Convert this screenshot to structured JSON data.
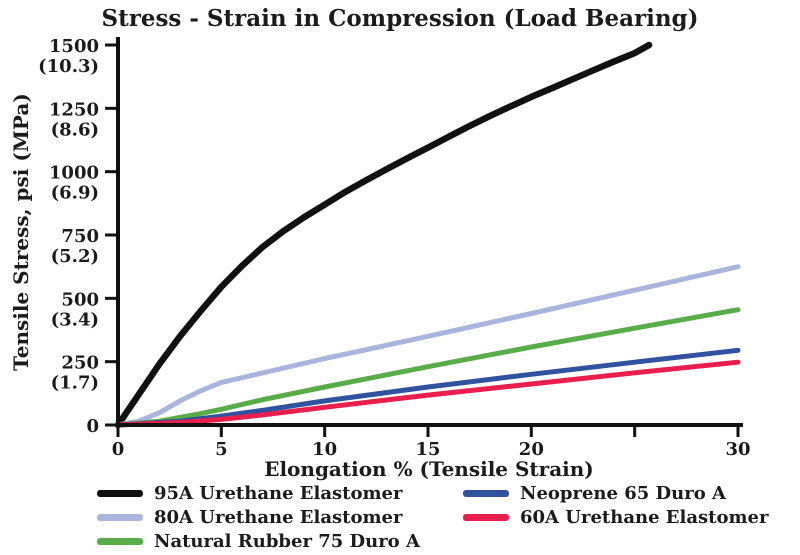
{
  "chart_data": {
    "type": "line",
    "title": "Stress - Strain in Compression (Load Bearing)",
    "xlabel": "Elongation % (Tensile Strain)",
    "ylabel": "Tensile Stress, psi (MPa)",
    "xlim": [
      0,
      30
    ],
    "ylim": [
      0,
      1500
    ],
    "grid": false,
    "legend_position": "bottom",
    "x_ticks": [
      {
        "value": 0,
        "label": "0"
      },
      {
        "value": 5,
        "label": "5"
      },
      {
        "value": 10,
        "label": "10"
      },
      {
        "value": 15,
        "label": "15"
      },
      {
        "value": 20,
        "label": "20"
      },
      {
        "value": 25,
        "label": ""
      },
      {
        "value": 30,
        "label": "30"
      }
    ],
    "y_ticks": [
      {
        "value": 0,
        "psi": "0",
        "mpa": ""
      },
      {
        "value": 250,
        "psi": "250",
        "mpa": "(1.7)"
      },
      {
        "value": 500,
        "psi": "500",
        "mpa": "(3.4)"
      },
      {
        "value": 750,
        "psi": "750",
        "mpa": "(5.2)"
      },
      {
        "value": 1000,
        "psi": "1000",
        "mpa": "(6.9)"
      },
      {
        "value": 1250,
        "psi": "1250",
        "mpa": "(8.6)"
      },
      {
        "value": 1500,
        "psi": "1500",
        "mpa": "(10.3)"
      }
    ],
    "series": [
      {
        "name": "95A Urethane Elastomer",
        "color": "#111111",
        "width": 6.5,
        "points": [
          [
            0,
            0
          ],
          [
            1,
            120
          ],
          [
            2,
            240
          ],
          [
            3,
            350
          ],
          [
            4,
            450
          ],
          [
            5,
            545
          ],
          [
            6,
            628
          ],
          [
            7,
            703
          ],
          [
            8,
            765
          ],
          [
            9,
            820
          ],
          [
            10,
            870
          ],
          [
            11,
            920
          ],
          [
            12,
            966
          ],
          [
            13,
            1010
          ],
          [
            14,
            1053
          ],
          [
            15,
            1095
          ],
          [
            16,
            1138
          ],
          [
            17,
            1180
          ],
          [
            18,
            1220
          ],
          [
            19,
            1258
          ],
          [
            20,
            1295
          ],
          [
            21,
            1330
          ],
          [
            22,
            1365
          ],
          [
            23,
            1400
          ],
          [
            24,
            1435
          ],
          [
            25,
            1468
          ],
          [
            25.7,
            1500
          ]
        ]
      },
      {
        "name": "80A Urethane Elastomer",
        "color": "#a9b5dc",
        "width": 5,
        "points": [
          [
            0,
            0
          ],
          [
            1,
            15
          ],
          [
            2,
            48
          ],
          [
            3,
            95
          ],
          [
            4,
            135
          ],
          [
            5,
            168
          ],
          [
            7.5,
            215
          ],
          [
            10,
            262
          ],
          [
            12.5,
            306
          ],
          [
            15,
            350
          ],
          [
            20,
            440
          ],
          [
            25,
            532
          ],
          [
            30,
            625
          ]
        ]
      },
      {
        "name": "Natural Rubber 75 Duro A",
        "color": "#58ad49",
        "width": 5,
        "points": [
          [
            0,
            0
          ],
          [
            2,
            15
          ],
          [
            4,
            45
          ],
          [
            5,
            62
          ],
          [
            7,
            100
          ],
          [
            10,
            150
          ],
          [
            15,
            230
          ],
          [
            20,
            308
          ],
          [
            25,
            382
          ],
          [
            30,
            455
          ]
        ]
      },
      {
        "name": "Neoprene 65 Duro A",
        "color": "#31529f",
        "width": 5,
        "points": [
          [
            0,
            0
          ],
          [
            3,
            15
          ],
          [
            5,
            35
          ],
          [
            7,
            58
          ],
          [
            10,
            95
          ],
          [
            15,
            150
          ],
          [
            20,
            200
          ],
          [
            25,
            248
          ],
          [
            30,
            295
          ]
        ]
      },
      {
        "name": "60A Urethane Elastomer",
        "color": "#e81e4c",
        "width": 5,
        "points": [
          [
            0,
            0
          ],
          [
            3,
            10
          ],
          [
            5,
            22
          ],
          [
            7,
            40
          ],
          [
            10,
            70
          ],
          [
            15,
            118
          ],
          [
            20,
            162
          ],
          [
            25,
            206
          ],
          [
            30,
            248
          ]
        ]
      }
    ]
  },
  "legend": {
    "columns": [
      [
        {
          "label": "95A Urethane Elastomer",
          "series_index": 0
        },
        {
          "label": "80A Urethane Elastomer",
          "series_index": 1
        },
        {
          "label": "Natural Rubber 75 Duro A",
          "series_index": 2
        }
      ],
      [
        {
          "label": "Neoprene 65 Duro A",
          "series_index": 3
        },
        {
          "label": "60A Urethane Elastomer",
          "series_index": 4
        }
      ]
    ]
  }
}
